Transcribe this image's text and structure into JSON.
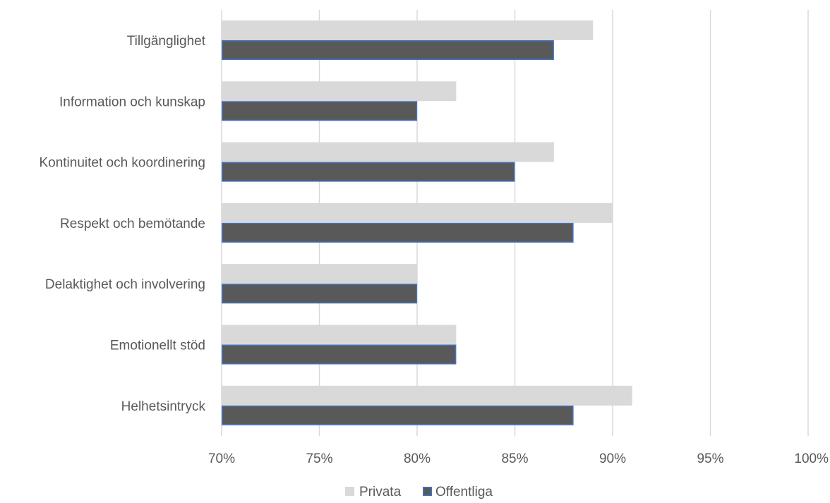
{
  "chart_data": {
    "type": "bar",
    "orientation": "horizontal",
    "categories": [
      "Tillgänglighet",
      "Information och kunskap",
      "Kontinuitet och koordinering",
      "Respekt och bemötande",
      "Delaktighet och involvering",
      "Emotionellt stöd",
      "Helhetsintryck"
    ],
    "series": [
      {
        "name": "Privata",
        "values": [
          89,
          82,
          87,
          90,
          80,
          82,
          91
        ],
        "color": "#d9d9d9"
      },
      {
        "name": "Offentliga",
        "values": [
          87,
          80,
          85,
          88,
          80,
          82,
          88
        ],
        "color": "#595959",
        "edge_color": "#4472c4"
      }
    ],
    "xlim": [
      70,
      100
    ],
    "x_ticks": [
      70,
      75,
      80,
      85,
      90,
      95,
      100
    ],
    "x_tick_labels": [
      "70%",
      "75%",
      "80%",
      "85%",
      "90%",
      "95%",
      "100%"
    ],
    "grid": true,
    "legend_position": "bottom",
    "title": "",
    "xlabel": "",
    "ylabel": ""
  }
}
